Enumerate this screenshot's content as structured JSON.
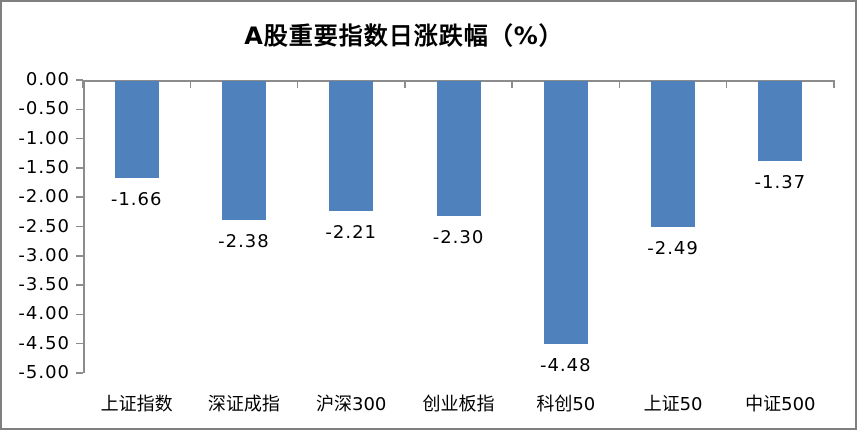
{
  "chart_data": {
    "type": "bar",
    "title": "A股重要指数日涨跌幅（%）",
    "categories": [
      "上证指数",
      "深证成指",
      "沪深300",
      "创业板指",
      "科创50",
      "上证50",
      "中证500"
    ],
    "values": [
      -1.66,
      -2.38,
      -2.21,
      -2.3,
      -4.48,
      -2.49,
      -1.37
    ],
    "data_labels": [
      "-1.66",
      "-2.38",
      "-2.21",
      "-2.30",
      "-4.48",
      "-2.49",
      "-1.37"
    ],
    "xlabel": "",
    "ylabel": "",
    "ylim": [
      -5.0,
      0.0
    ],
    "ytick_step": 0.5,
    "ytick_labels": [
      "0.00",
      "-0.50",
      "-1.00",
      "-1.50",
      "-2.00",
      "-2.50",
      "-3.00",
      "-3.50",
      "-4.00",
      "-4.50",
      "-5.00"
    ],
    "grid": false,
    "legend": "none",
    "colors": {
      "bar": "#4F81BD",
      "axis": "#8C8C8C",
      "border": "#7F7F7F",
      "background": "#FFFFFF",
      "text": "#000000"
    }
  }
}
